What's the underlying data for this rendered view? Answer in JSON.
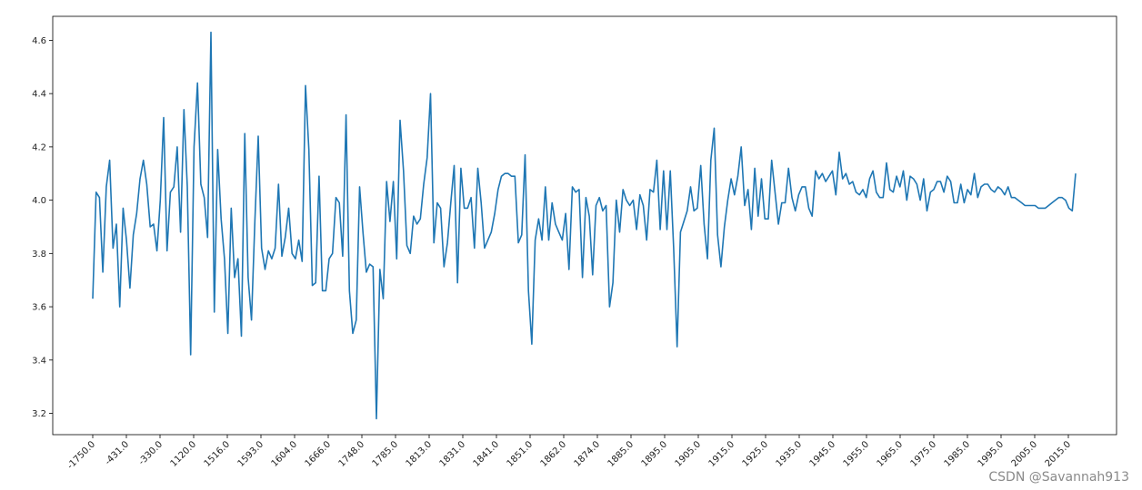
{
  "chart_data": {
    "type": "line",
    "title": "",
    "xlabel": "",
    "ylabel": "",
    "ylim": [
      3.12,
      4.69
    ],
    "grid": false,
    "line_color": "#1f77b4",
    "x_tick_labels": [
      "-1750.0",
      "-431.0",
      "-330.0",
      "1120.0",
      "1516.0",
      "1593.0",
      "1604.0",
      "1666.0",
      "1748.0",
      "1785.0",
      "1813.0",
      "1831.0",
      "1841.0",
      "1851.0",
      "1862.0",
      "1874.0",
      "1885.0",
      "1895.0",
      "1905.0",
      "1915.0",
      "1925.0",
      "1935.0",
      "1945.0",
      "1955.0",
      "1965.0",
      "1975.0",
      "1985.0",
      "1995.0",
      "2005.0",
      "2015.0"
    ],
    "y_ticks": [
      3.2,
      3.4,
      3.6,
      3.8,
      4.0,
      4.2,
      4.4,
      4.6
    ],
    "y_tick_labels": [
      "3.2",
      "3.4",
      "3.6",
      "3.8",
      "4.0",
      "4.2",
      "4.4",
      "4.6"
    ],
    "values": [
      3.63,
      4.03,
      4.01,
      3.73,
      4.05,
      4.15,
      3.82,
      3.91,
      3.6,
      3.97,
      3.85,
      3.67,
      3.87,
      3.95,
      4.08,
      4.15,
      4.06,
      3.9,
      3.91,
      3.81,
      4.0,
      4.31,
      3.81,
      4.03,
      4.05,
      4.2,
      3.88,
      4.34,
      4.05,
      3.42,
      4.2,
      4.44,
      4.06,
      4.01,
      3.86,
      4.63,
      3.58,
      4.19,
      3.93,
      3.78,
      3.5,
      3.97,
      3.71,
      3.78,
      3.49,
      4.25,
      3.71,
      3.55,
      3.92,
      4.24,
      3.82,
      3.74,
      3.81,
      3.78,
      3.82,
      4.06,
      3.79,
      3.86,
      3.97,
      3.8,
      3.78,
      3.85,
      3.77,
      4.43,
      4.19,
      3.68,
      3.69,
      4.09,
      3.66,
      3.66,
      3.78,
      3.8,
      4.01,
      3.99,
      3.79,
      4.32,
      3.66,
      3.5,
      3.55,
      4.05,
      3.88,
      3.73,
      3.76,
      3.75,
      3.18,
      3.74,
      3.63,
      4.07,
      3.92,
      4.07,
      3.78,
      4.3,
      4.11,
      3.83,
      3.8,
      3.94,
      3.91,
      3.93,
      4.06,
      4.16,
      4.4,
      3.84,
      3.99,
      3.97,
      3.75,
      3.84,
      3.99,
      4.13,
      3.69,
      4.12,
      3.97,
      3.97,
      4.01,
      3.82,
      4.12,
      3.99,
      3.82,
      3.85,
      3.88,
      3.95,
      4.04,
      4.09,
      4.1,
      4.1,
      4.09,
      4.09,
      3.84,
      3.87,
      4.17,
      3.66,
      3.46,
      3.85,
      3.93,
      3.85,
      4.05,
      3.85,
      3.99,
      3.91,
      3.88,
      3.85,
      3.95,
      3.74,
      4.05,
      4.03,
      4.04,
      3.71,
      4.01,
      3.94,
      3.72,
      3.98,
      4.01,
      3.96,
      3.98,
      3.6,
      3.69,
      4.0,
      3.88,
      4.04,
      4.0,
      3.98,
      4.0,
      3.89,
      4.02,
      3.98,
      3.85,
      4.04,
      4.03,
      4.15,
      3.89,
      4.11,
      3.89,
      4.11,
      3.82,
      3.45,
      3.88,
      3.92,
      3.96,
      4.05,
      3.96,
      3.97,
      4.13,
      3.91,
      3.78,
      4.15,
      4.27,
      3.87,
      3.75,
      3.9,
      4.0,
      4.08,
      4.02,
      4.09,
      4.2,
      3.98,
      4.04,
      3.89,
      4.12,
      3.94,
      4.08,
      3.93,
      3.93,
      4.15,
      4.03,
      3.91,
      3.99,
      3.99,
      4.12,
      4.01,
      3.96,
      4.02,
      4.05,
      4.05,
      3.97,
      3.94,
      4.11,
      4.08,
      4.1,
      4.07,
      4.09,
      4.11,
      4.02,
      4.18,
      4.08,
      4.1,
      4.06,
      4.07,
      4.03,
      4.02,
      4.04,
      4.01,
      4.08,
      4.11,
      4.03,
      4.01,
      4.01,
      4.14,
      4.04,
      4.03,
      4.09,
      4.05,
      4.11,
      4.0,
      4.09,
      4.08,
      4.06,
      4.0,
      4.08,
      3.96,
      4.03,
      4.04,
      4.07,
      4.07,
      4.03,
      4.09,
      4.07,
      3.99,
      3.99,
      4.06,
      3.99,
      4.04,
      4.02,
      4.1,
      4.01,
      4.05,
      4.06,
      4.06,
      4.04,
      4.03,
      4.05,
      4.04,
      4.02,
      4.05,
      4.01,
      4.01,
      4.0,
      3.99,
      3.98,
      3.98,
      3.98,
      3.98,
      3.97,
      3.97,
      3.97,
      3.98,
      3.99,
      4.0,
      4.01,
      4.01,
      4.0,
      3.97,
      3.96,
      4.1
    ]
  },
  "watermark": "CSDN @Savannah913"
}
